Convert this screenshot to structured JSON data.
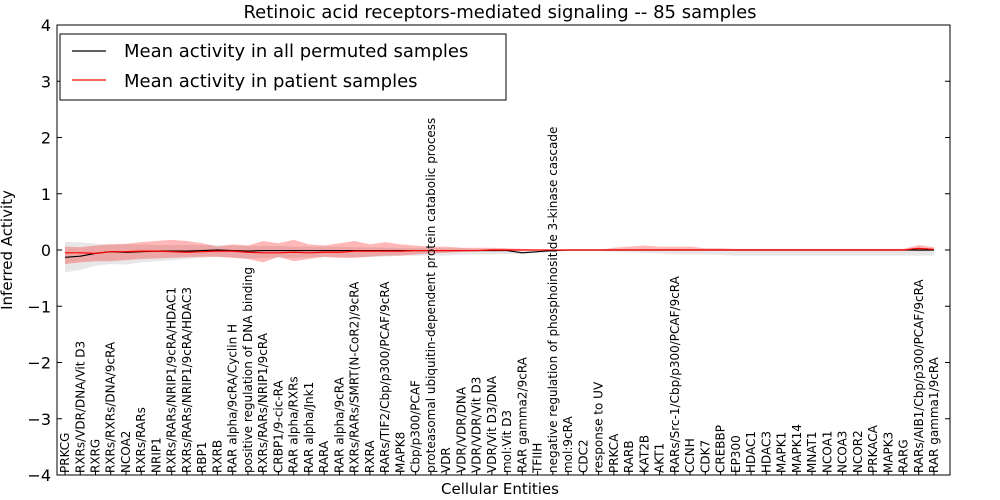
{
  "chart_data": {
    "type": "line",
    "title": "Retinoic acid receptors-mediated signaling -- 85 samples",
    "xlabel": "Cellular Entities",
    "ylabel": "Inferred Activity",
    "ylim": [
      -4,
      4
    ],
    "yticks": [
      -4,
      -3,
      -2,
      -1,
      0,
      1,
      2,
      3,
      4
    ],
    "ytick_labels": [
      "−4",
      "−3",
      "−2",
      "−1",
      "0",
      "1",
      "2",
      "3",
      "4"
    ],
    "legend_position": "top-left",
    "categories": [
      "PRKCG",
      "RXRs/VDR/DNA/Vit D3",
      "RXRG",
      "RXRs/RXRs/DNA/9cRA",
      "NCOA2",
      "RXRs/RARs",
      "NRIP1",
      "RXRs/RARs/NRIP1/9cRA/HDAC1",
      "RXRs/RARs/NRIP1/9cRA/HDAC3",
      "RBP1",
      "RXRB",
      "RAR alpha/9cRA/Cyclin H",
      "positive regulation of DNA binding",
      "RXRs/RARs/NRIP1/9cRA",
      "CRBP1/9-cic-RA",
      "RAR alpha/RXRs",
      "RAR alpha/Jnk1",
      "RARA",
      "RAR alpha/9cRA",
      "RXRs/RARs/SMRT(N-CoR2)/9cRA",
      "RXRA",
      "RARs/TIF2/Cbp/p300/PCAF/9cRA",
      "MAPK8",
      "Cbp/p300/PCAF",
      "proteasomal ubiquitin-dependent protein catabolic process",
      "VDR",
      "VDR/VDR/DNA",
      "VDR/VDR/Vit D3",
      "VDR/Vit D3/DNA",
      "mol:Vit D3",
      "RAR gamma2/9cRA",
      "TFIIH",
      "negative regulation of phosphoinositide 3-kinase cascade",
      "mol:9cRA",
      "CDC2",
      "response to UV",
      "PRKCA",
      "RARB",
      "KAT2B",
      "AKT1",
      "RARs/Src-1/Cbp/p300/PCAF/9cRA",
      "CCNH",
      "CDK7",
      "CREBBP",
      "EP300",
      "HDAC1",
      "HDAC3",
      "MAPK1",
      "MAPK14",
      "MNAT1",
      "NCOA1",
      "NCOA3",
      "NCOR2",
      "PRKACA",
      "MAPK3",
      "RARG",
      "RARs/AIB1/Cbp/p300/PCAF/9cRA",
      "RAR gamma1/9cRA"
    ],
    "series": [
      {
        "name": "Mean activity in all permuted samples",
        "color": "#000000",
        "values": [
          -0.13,
          -0.11,
          -0.06,
          -0.03,
          -0.04,
          -0.03,
          -0.02,
          -0.02,
          -0.02,
          -0.01,
          0.0,
          -0.01,
          -0.02,
          -0.01,
          -0.01,
          -0.01,
          -0.01,
          -0.01,
          -0.01,
          -0.01,
          -0.01,
          -0.01,
          -0.01,
          -0.01,
          -0.01,
          -0.01,
          -0.01,
          -0.01,
          -0.01,
          -0.01,
          -0.05,
          -0.03,
          -0.01,
          0.0,
          0.0,
          0.0,
          0.0,
          0.0,
          0.0,
          0.0,
          0.0,
          0.0,
          0.0,
          0.0,
          0.0,
          0.0,
          0.0,
          0.0,
          0.0,
          0.0,
          0.0,
          0.0,
          0.0,
          0.0,
          0.0,
          0.0,
          0.0,
          0.0
        ],
        "band_lower": [
          -0.4,
          -0.35,
          -0.28,
          -0.25,
          -0.26,
          -0.22,
          -0.2,
          -0.18,
          -0.16,
          -0.14,
          -0.12,
          -0.13,
          -0.15,
          -0.14,
          -0.14,
          -0.14,
          -0.13,
          -0.13,
          -0.13,
          -0.13,
          -0.12,
          -0.12,
          -0.1,
          -0.1,
          -0.1,
          -0.1,
          -0.08,
          -0.08,
          -0.08,
          -0.07,
          -0.07,
          -0.05,
          -0.03,
          -0.02,
          -0.02,
          -0.02,
          -0.03,
          -0.04,
          -0.05,
          -0.06,
          -0.08,
          -0.08,
          -0.08,
          -0.09,
          -0.1,
          -0.1,
          -0.1,
          -0.1,
          -0.1,
          -0.1,
          -0.1,
          -0.1,
          -0.1,
          -0.1,
          -0.1,
          -0.1,
          -0.1,
          -0.1
        ],
        "band_upper": [
          0.14,
          0.14,
          0.11,
          0.1,
          0.1,
          0.1,
          0.09,
          0.09,
          0.09,
          0.09,
          0.09,
          0.08,
          0.07,
          0.07,
          0.07,
          0.06,
          0.06,
          0.06,
          0.06,
          0.05,
          0.05,
          0.04,
          0.04,
          0.04,
          0.03,
          0.03,
          0.03,
          0.02,
          0.02,
          0.02,
          0.01,
          0.01,
          0.0,
          0.0,
          0.0,
          0.0,
          0.0,
          0.0,
          0.0,
          0.0,
          0.0,
          0.0,
          0.0,
          0.0,
          0.0,
          0.0,
          0.0,
          0.0,
          0.0,
          0.0,
          0.0,
          0.0,
          0.0,
          0.0,
          0.0,
          0.0,
          0.0,
          0.0
        ]
      },
      {
        "name": "Mean activity in patient samples",
        "color": "#ff0000",
        "values": [
          -0.05,
          -0.05,
          -0.06,
          -0.03,
          -0.03,
          -0.02,
          -0.02,
          -0.03,
          -0.04,
          -0.03,
          -0.02,
          -0.02,
          -0.04,
          -0.05,
          -0.05,
          -0.04,
          -0.05,
          -0.04,
          -0.04,
          -0.02,
          -0.02,
          -0.02,
          -0.02,
          -0.01,
          -0.01,
          -0.01,
          -0.01,
          -0.01,
          0.0,
          0.0,
          0.0,
          0.0,
          0.0,
          0.0,
          0.0,
          0.0,
          0.0,
          0.0,
          0.0,
          0.0,
          0.0,
          0.0,
          0.0,
          0.0,
          0.0,
          0.0,
          0.0,
          0.0,
          0.0,
          0.0,
          0.0,
          0.0,
          0.0,
          0.0,
          0.0,
          0.0,
          0.03,
          0.01
        ],
        "band_lower": [
          -0.25,
          -0.22,
          -0.2,
          -0.2,
          -0.18,
          -0.16,
          -0.15,
          -0.14,
          -0.13,
          -0.12,
          -0.12,
          -0.14,
          -0.16,
          -0.22,
          -0.12,
          -0.2,
          -0.16,
          -0.12,
          -0.14,
          -0.14,
          -0.12,
          -0.1,
          -0.1,
          -0.08,
          -0.06,
          -0.05,
          -0.03,
          -0.02,
          -0.02,
          -0.02,
          -0.01,
          -0.01,
          0.0,
          0.0,
          0.0,
          0.0,
          -0.01,
          -0.01,
          -0.01,
          -0.01,
          -0.01,
          -0.01,
          0.0,
          0.0,
          0.0,
          0.0,
          0.0,
          0.0,
          0.0,
          0.0,
          0.0,
          0.0,
          0.0,
          0.0,
          0.0,
          0.0,
          -0.02,
          -0.01
        ],
        "band_upper": [
          0.06,
          0.05,
          0.08,
          0.1,
          0.11,
          0.14,
          0.16,
          0.18,
          0.16,
          0.12,
          0.06,
          0.1,
          0.08,
          0.16,
          0.12,
          0.18,
          0.1,
          0.08,
          0.12,
          0.16,
          0.1,
          0.14,
          0.1,
          0.08,
          0.06,
          0.06,
          0.04,
          0.04,
          0.04,
          0.03,
          0.02,
          0.01,
          0.0,
          0.0,
          0.0,
          0.0,
          0.04,
          0.06,
          0.08,
          0.06,
          0.06,
          0.06,
          0.03,
          0.03,
          0.02,
          0.02,
          0.02,
          0.02,
          0.02,
          0.02,
          0.02,
          0.02,
          0.02,
          0.02,
          0.02,
          0.02,
          0.09,
          0.05
        ]
      }
    ]
  }
}
